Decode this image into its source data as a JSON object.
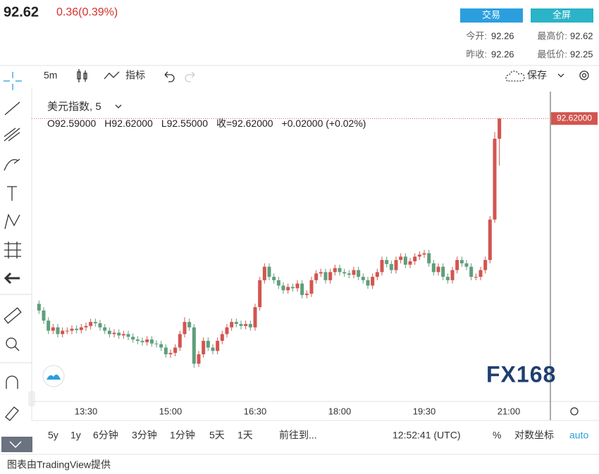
{
  "header": {
    "price": "92.62",
    "change": "0.36(0.39%)",
    "buttons": [
      "交易",
      "全屏"
    ],
    "stats": [
      {
        "label": "今开:",
        "value": "92.26"
      },
      {
        "label": "最高价:",
        "value": "92.62"
      },
      {
        "label": "昨收:",
        "value": "92.26"
      },
      {
        "label": "最低价:",
        "value": "92.25"
      }
    ]
  },
  "toolbar": {
    "interval": "5m",
    "indicators": "指标",
    "save": "保存"
  },
  "legend": {
    "symbol": "美元指数, 5",
    "ohlc": [
      "O92.59000",
      "H92.62000",
      "L92.55000",
      "收=92.62000",
      "+0.02000 (+0.02%)"
    ]
  },
  "bottom_bar": {
    "ranges": [
      "5y",
      "1y",
      "6分钟",
      "3分钟",
      "1分钟",
      "5天",
      "1天"
    ],
    "goto": "前往到...",
    "clock": "12:52:41 (UTC)",
    "percent": "%",
    "log": "对数坐标",
    "auto": "auto"
  },
  "footer": "图表由TradingView提供",
  "watermark": "FX168",
  "chart_data": {
    "type": "candlestick",
    "up_color": "#d2554f",
    "down_color": "#5f9e7c",
    "ylim": [
      92.2,
      92.66
    ],
    "last_price_label": "92.62000",
    "xticks": [
      "13:30",
      "15:00",
      "16:30",
      "18:00",
      "19:30",
      "21:00"
    ],
    "open": [
      92.345,
      92.335,
      92.32,
      92.305,
      92.31,
      92.3,
      92.305,
      92.305,
      92.308,
      92.306,
      92.31,
      92.312,
      92.318,
      92.316,
      92.31,
      92.305,
      92.3,
      92.302,
      92.298,
      92.3,
      92.296,
      92.292,
      92.29,
      92.288,
      92.292,
      92.286,
      92.285,
      92.28,
      92.27,
      92.272,
      92.28,
      92.3,
      92.318,
      92.31,
      92.256,
      92.27,
      92.29,
      92.28,
      92.275,
      92.29,
      92.3,
      92.31,
      92.318,
      92.315,
      92.312,
      92.315,
      92.31,
      92.34,
      92.38,
      92.4,
      92.385,
      92.38,
      92.372,
      92.365,
      92.37,
      92.368,
      92.375,
      92.358,
      92.36,
      92.38,
      92.39,
      92.392,
      92.38,
      92.392,
      92.398,
      92.392,
      92.39,
      92.388,
      92.395,
      92.385,
      92.38,
      92.372,
      92.385,
      92.392,
      92.41,
      92.404,
      92.395,
      92.41,
      92.415,
      92.403,
      92.408,
      92.415,
      92.418,
      92.42,
      92.405,
      92.392,
      92.4,
      92.385,
      92.38,
      92.395,
      92.41,
      92.405,
      92.4,
      92.385,
      92.385,
      92.395,
      92.41,
      92.47,
      92.59
    ],
    "high": [
      92.35,
      92.34,
      92.325,
      92.315,
      92.315,
      92.31,
      92.31,
      92.313,
      92.313,
      92.315,
      92.317,
      92.323,
      92.323,
      92.321,
      92.315,
      92.31,
      92.307,
      92.307,
      92.305,
      92.305,
      92.301,
      92.297,
      92.295,
      92.297,
      92.297,
      92.291,
      92.29,
      92.285,
      92.277,
      92.285,
      92.305,
      92.325,
      92.323,
      92.315,
      92.275,
      92.295,
      92.295,
      92.285,
      92.295,
      92.305,
      92.315,
      92.323,
      92.323,
      92.32,
      92.32,
      92.32,
      92.345,
      92.385,
      92.405,
      92.405,
      92.39,
      92.385,
      92.377,
      92.375,
      92.375,
      92.38,
      92.38,
      92.365,
      92.385,
      92.395,
      92.397,
      92.397,
      92.397,
      92.403,
      92.403,
      92.397,
      92.395,
      92.4,
      92.4,
      92.39,
      92.385,
      92.39,
      92.397,
      92.415,
      92.415,
      92.409,
      92.415,
      92.42,
      92.42,
      92.413,
      92.42,
      92.423,
      92.425,
      92.425,
      92.41,
      92.405,
      92.405,
      92.39,
      92.4,
      92.415,
      92.415,
      92.41,
      92.405,
      92.39,
      92.4,
      92.415,
      92.475,
      92.6,
      92.62
    ],
    "low": [
      92.33,
      92.315,
      92.3,
      92.3,
      92.295,
      92.295,
      92.3,
      92.3,
      92.301,
      92.301,
      92.305,
      92.307,
      92.311,
      92.305,
      92.3,
      92.295,
      92.295,
      92.293,
      92.293,
      92.291,
      92.287,
      92.285,
      92.283,
      92.283,
      92.281,
      92.28,
      92.275,
      92.265,
      92.265,
      92.267,
      92.275,
      92.295,
      92.305,
      92.25,
      92.251,
      92.265,
      92.275,
      92.27,
      92.27,
      92.285,
      92.295,
      92.305,
      92.31,
      92.307,
      92.307,
      92.305,
      92.305,
      92.335,
      92.375,
      92.38,
      92.375,
      92.367,
      92.36,
      92.36,
      92.363,
      92.363,
      92.353,
      92.353,
      92.355,
      92.375,
      92.385,
      92.375,
      92.375,
      92.387,
      92.387,
      92.385,
      92.383,
      92.383,
      92.38,
      92.375,
      92.367,
      92.367,
      92.38,
      92.387,
      92.399,
      92.39,
      92.39,
      92.405,
      92.398,
      92.398,
      92.403,
      92.41,
      92.413,
      92.4,
      92.387,
      92.387,
      92.38,
      92.375,
      92.375,
      92.39,
      92.4,
      92.395,
      92.38,
      92.38,
      92.38,
      92.39,
      92.405,
      92.465,
      92.55
    ],
    "close": [
      92.335,
      92.32,
      92.305,
      92.31,
      92.3,
      92.305,
      92.305,
      92.308,
      92.306,
      92.31,
      92.312,
      92.318,
      92.316,
      92.31,
      92.305,
      92.3,
      92.302,
      92.298,
      92.3,
      92.296,
      92.292,
      92.29,
      92.288,
      92.292,
      92.286,
      92.285,
      92.28,
      92.27,
      92.272,
      92.28,
      92.3,
      92.318,
      92.31,
      92.256,
      92.27,
      92.29,
      92.28,
      92.275,
      92.29,
      92.3,
      92.31,
      92.318,
      92.315,
      92.312,
      92.315,
      92.31,
      92.34,
      92.38,
      92.4,
      92.385,
      92.38,
      92.372,
      92.365,
      92.37,
      92.368,
      92.375,
      92.358,
      92.36,
      92.38,
      92.39,
      92.392,
      92.38,
      92.392,
      92.398,
      92.392,
      92.39,
      92.388,
      92.395,
      92.385,
      92.38,
      92.372,
      92.385,
      92.392,
      92.41,
      92.404,
      92.395,
      92.41,
      92.415,
      92.403,
      92.408,
      92.415,
      92.418,
      92.42,
      92.405,
      92.392,
      92.4,
      92.385,
      92.38,
      92.395,
      92.41,
      92.405,
      92.4,
      92.385,
      92.385,
      92.395,
      92.41,
      92.47,
      92.59,
      92.62
    ]
  }
}
